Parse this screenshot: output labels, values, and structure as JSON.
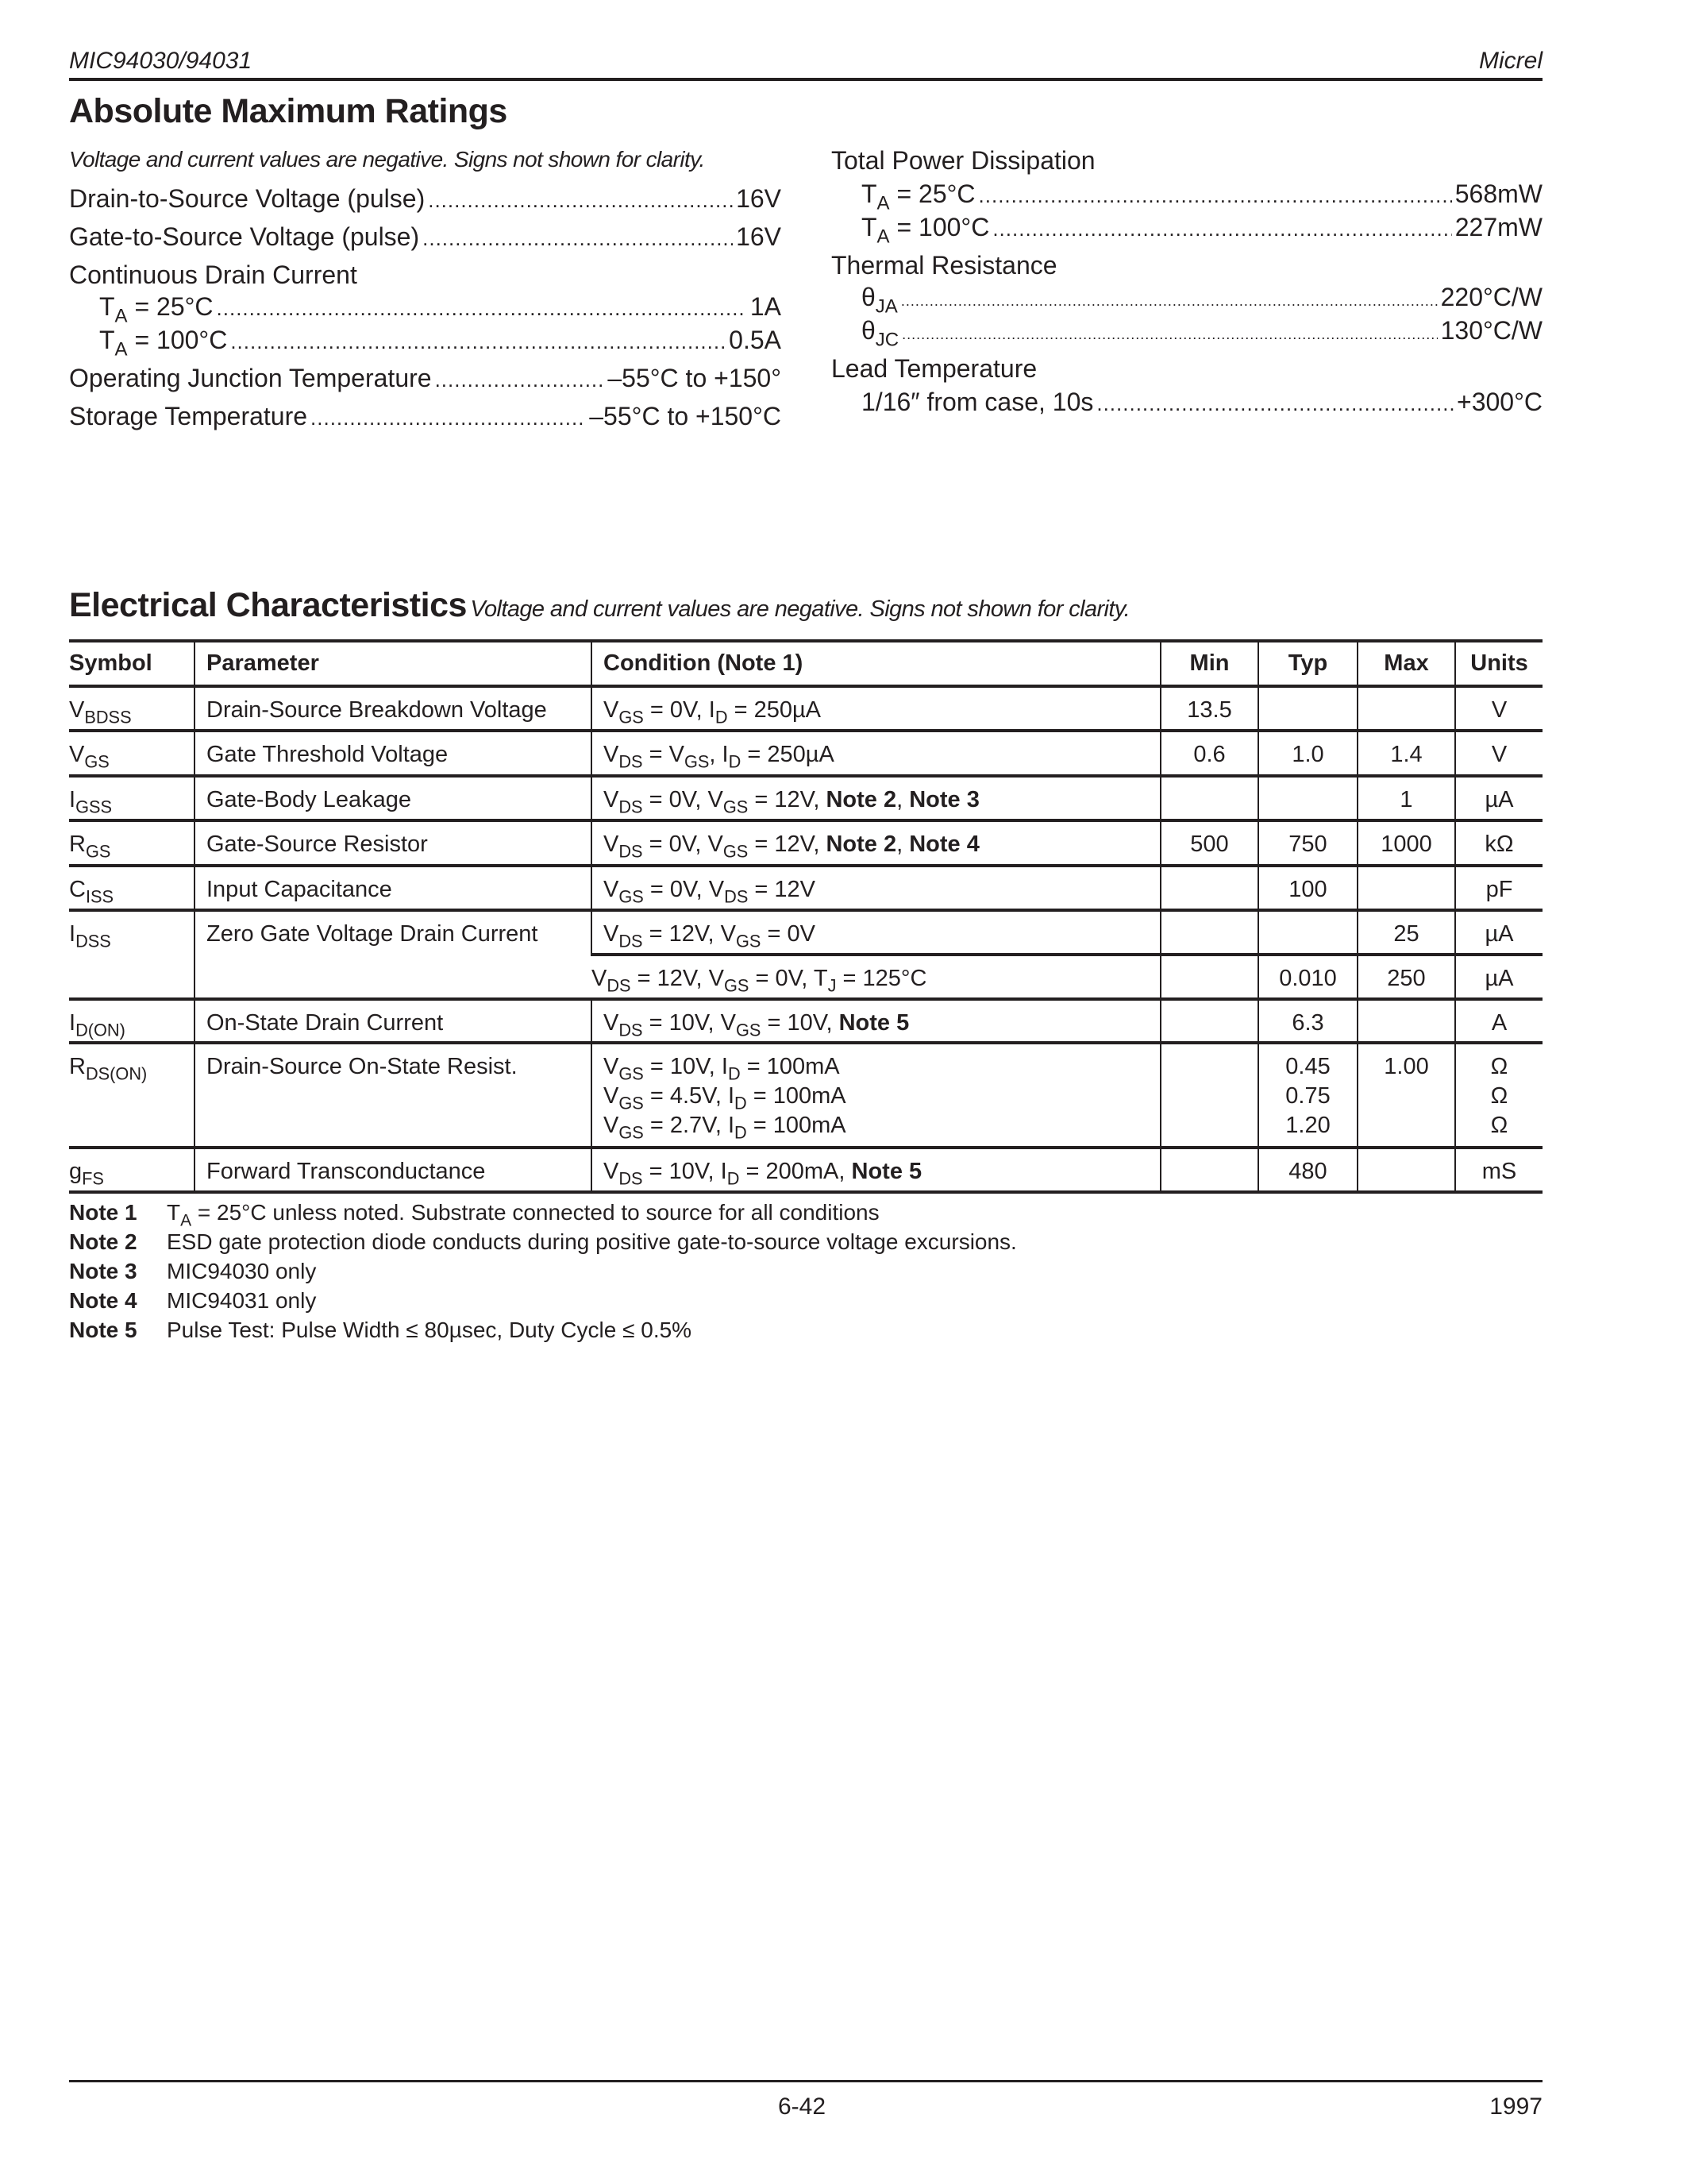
{
  "header": {
    "part": "MIC94030/94031",
    "brand": "Micrel"
  },
  "amr": {
    "title": "Absolute Maximum Ratings",
    "note": "Voltage and current values are negative.  Signs not shown for clarity.",
    "left": [
      {
        "label": "Drain-to-Source Voltage (pulse)",
        "value": "16V"
      },
      {
        "label": "Gate-to-Source Voltage (pulse) ",
        "value": "16V"
      },
      {
        "label": "Continuous Drain Current"
      },
      {
        "indent": true,
        "label": "T",
        "sub": "A",
        "rest": " = 25°C",
        "value": "1A"
      },
      {
        "indent": true,
        "label": "T",
        "sub": "A",
        "rest": " = 100°C",
        "value": "0.5A"
      },
      {
        "label": "Operating Junction Temperature ",
        "value": "–55°C to +150°"
      },
      {
        "label": "Storage Temperature ",
        "value": "–55°C to +150°C"
      }
    ],
    "right": [
      {
        "label": "Total Power Dissipation"
      },
      {
        "indent": true,
        "label": "T",
        "sub": "A",
        "rest": " = 25°C",
        "value": "568mW"
      },
      {
        "indent": true,
        "label": "T",
        "sub": "A",
        "rest": " = 100°C",
        "value": "227mW"
      },
      {
        "label": "Thermal Resistance"
      },
      {
        "indent": true,
        "fine": true,
        "label": "θ",
        "sub": "JA",
        "rest": "",
        "value": "220°C/W"
      },
      {
        "indent": true,
        "fine": true,
        "label": "θ",
        "sub": "JC",
        "rest": "",
        "value": "130°C/W"
      },
      {
        "label": "Lead Temperature"
      },
      {
        "indent": true,
        "label": "1/16″ from case, 10s ",
        "value": "+300°C"
      }
    ]
  },
  "ec": {
    "title": "Electrical Characteristics",
    "note": "Voltage and current values are negative.  Signs not shown for clarity.",
    "columns": [
      "Symbol",
      "Parameter",
      "Condition (Note 1)",
      "Min",
      "Typ",
      "Max",
      "Units"
    ],
    "rows": [
      {
        "sym": [
          "V",
          "BDSS"
        ],
        "param": "Drain-Source Breakdown Voltage",
        "conds": [
          {
            "c": [
              [
                "V"
              ],
              [
                "GS",
                "s"
              ],
              [
                " = 0V, I"
              ],
              [
                "D",
                "s"
              ],
              [
                " = 250µA"
              ]
            ],
            "min": "13.5",
            "typ": "",
            "max": "",
            "units": "V"
          }
        ]
      },
      {
        "sym": [
          "V",
          "GS"
        ],
        "param": "Gate Threshold Voltage",
        "conds": [
          {
            "c": [
              [
                "V"
              ],
              [
                "DS",
                "s"
              ],
              [
                " = V"
              ],
              [
                "GS",
                "s"
              ],
              [
                ", I"
              ],
              [
                "D",
                "s"
              ],
              [
                " = 250µA"
              ]
            ],
            "min": "0.6",
            "typ": "1.0",
            "max": "1.4",
            "units": "V"
          }
        ]
      },
      {
        "sym": [
          "I",
          "GSS"
        ],
        "param": "Gate-Body  Leakage",
        "conds": [
          {
            "c": [
              [
                "V"
              ],
              [
                "DS",
                "s"
              ],
              [
                " = 0V, V"
              ],
              [
                "GS",
                "s"
              ],
              [
                " = 12V, "
              ],
              [
                "Note 2",
                "b"
              ],
              [
                ", "
              ],
              [
                "Note 3",
                "b"
              ]
            ],
            "min": "",
            "typ": "",
            "max": "1",
            "units": "µA"
          }
        ]
      },
      {
        "sym": [
          "R",
          "GS"
        ],
        "param": "Gate-Source Resistor",
        "conds": [
          {
            "c": [
              [
                "V"
              ],
              [
                "DS",
                "s"
              ],
              [
                " = 0V, V"
              ],
              [
                "GS",
                "s"
              ],
              [
                " = 12V, "
              ],
              [
                "Note 2",
                "b"
              ],
              [
                ", "
              ],
              [
                "Note 4",
                "b"
              ]
            ],
            "min": "500",
            "typ": "750",
            "max": "1000",
            "units": "kΩ"
          }
        ]
      },
      {
        "sym": [
          "C",
          "ISS"
        ],
        "param": "Input Capacitance",
        "conds": [
          {
            "c": [
              [
                "V"
              ],
              [
                "GS",
                "s"
              ],
              [
                " = 0V, V"
              ],
              [
                "DS",
                "s"
              ],
              [
                " = 12V"
              ]
            ],
            "min": "",
            "typ": "100",
            "max": "",
            "units": "pF"
          }
        ]
      },
      {
        "sym": [
          "I",
          "DSS"
        ],
        "param": "Zero Gate Voltage Drain Current",
        "conds": [
          {
            "c": [
              [
                "V"
              ],
              [
                "DS",
                "s"
              ],
              [
                " = 12V, V"
              ],
              [
                "GS",
                "s"
              ],
              [
                " = 0V"
              ]
            ],
            "min": "",
            "typ": "",
            "max": "25",
            "units": "µA"
          },
          {
            "c": [
              [
                "V"
              ],
              [
                "DS",
                "s"
              ],
              [
                " = 12V, V"
              ],
              [
                "GS",
                "s"
              ],
              [
                " = 0V, T"
              ],
              [
                "J",
                "s"
              ],
              [
                " = 125°C"
              ]
            ],
            "min": "",
            "typ": "0.010",
            "max": "250",
            "units": "µA"
          }
        ]
      },
      {
        "sym": [
          "I",
          "D(ON)"
        ],
        "param": "On-State Drain Current",
        "conds": [
          {
            "c": [
              [
                "V"
              ],
              [
                "DS",
                "s"
              ],
              [
                " = 10V, V"
              ],
              [
                "GS",
                "s"
              ],
              [
                " = 10V, "
              ],
              [
                "Note 5",
                "b"
              ]
            ],
            "min": "",
            "typ": "6.3",
            "max": "",
            "units": "A"
          }
        ]
      },
      {
        "sym": [
          "R",
          "DS(ON)"
        ],
        "param": "Drain-Source On-State Resist.",
        "conds": [
          {
            "multi": [
              [
                [
                  "V"
                ],
                [
                  "GS",
                  "s"
                ],
                [
                  " = 10V, I"
                ],
                [
                  "D",
                  "s"
                ],
                [
                  " = 100mA"
                ]
              ],
              [
                [
                  "V"
                ],
                [
                  "GS",
                  "s"
                ],
                [
                  " = 4.5V, I"
                ],
                [
                  "D",
                  "s"
                ],
                [
                  " = 100mA"
                ]
              ],
              [
                [
                  "V"
                ],
                [
                  "GS",
                  "s"
                ],
                [
                  " = 2.7V, I"
                ],
                [
                  "D",
                  "s"
                ],
                [
                  " = 100mA"
                ]
              ]
            ],
            "min": "",
            "typ": [
              "0.45",
              "0.75",
              "1.20"
            ],
            "max": [
              "",
              "1.00",
              ""
            ],
            "units": [
              "Ω",
              "Ω",
              "Ω"
            ]
          }
        ]
      },
      {
        "sym": [
          "g",
          "FS"
        ],
        "param": "Forward Transconductance",
        "conds": [
          {
            "c": [
              [
                "V"
              ],
              [
                "DS",
                "s"
              ],
              [
                " = 10V, I"
              ],
              [
                "D",
                "s"
              ],
              [
                " = 200mA, "
              ],
              [
                "Note 5",
                "b"
              ]
            ],
            "min": "",
            "typ": "480",
            "max": "",
            "units": "mS"
          }
        ]
      }
    ],
    "notes": [
      {
        "label": "Note 1",
        "text": [
          [
            "T"
          ],
          [
            "A",
            "s"
          ],
          [
            " = 25°C unless noted.  Substrate connected to source for all conditions"
          ]
        ]
      },
      {
        "label": "Note 2",
        "text": [
          [
            "ESD gate protection diode conducts during positive gate-to-source voltage excursions."
          ]
        ]
      },
      {
        "label": "Note 3",
        "text": [
          [
            "MIC94030 only"
          ]
        ]
      },
      {
        "label": "Note 4",
        "text": [
          [
            "MIC94031 only"
          ]
        ]
      },
      {
        "label": "Note 5",
        "text": [
          [
            "Pulse Test: Pulse Width ≤ 80µsec, Duty Cycle ≤ 0.5%"
          ]
        ]
      }
    ]
  },
  "footer": {
    "page": "6-42",
    "year": "1997"
  }
}
